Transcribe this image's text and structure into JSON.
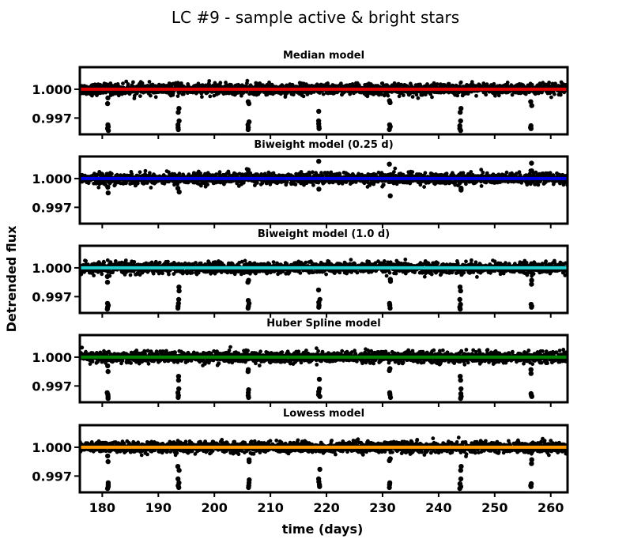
{
  "figure": {
    "title": "LC #9 - sample active & bright stars",
    "xlabel": "time (days)",
    "ylabel": "Detrended flux"
  },
  "chart_data": [
    {
      "type": "scatter",
      "title": "Median model",
      "model_color": "#e00000",
      "model_value": 1.0,
      "xlim": [
        176,
        263
      ],
      "ylim": [
        0.9953,
        1.0023
      ],
      "xticks": [
        180,
        190,
        200,
        210,
        220,
        230,
        240,
        250,
        260
      ],
      "yticks": [
        1.0,
        0.997
      ],
      "ytick_labels": [
        "1.000",
        "0.997"
      ],
      "xtick_labels_visible": false,
      "transit_times": [
        181.0,
        193.6,
        206.1,
        218.7,
        231.3,
        243.9,
        256.5
      ],
      "transit_dips": [
        {
          "t": 181.0,
          "flux": [
            0.9991,
            0.9985,
            0.9963,
            0.9961,
            0.9959,
            0.9957
          ]
        },
        {
          "t": 193.6,
          "flux": [
            0.998,
            0.9976,
            0.9967,
            0.9963,
            0.996,
            0.9958
          ]
        },
        {
          "t": 206.1,
          "flux": [
            0.9987,
            0.9985,
            0.9966,
            0.9963,
            0.996,
            0.9958
          ]
        },
        {
          "t": 218.7,
          "flux": [
            0.9977,
            0.9967,
            0.9964,
            0.9961,
            0.9959
          ]
        },
        {
          "t": 231.3,
          "flux": [
            0.9988,
            0.9986,
            0.9963,
            0.9961,
            0.9958
          ]
        },
        {
          "t": 243.9,
          "flux": [
            0.998,
            0.9976,
            0.9967,
            0.9962,
            0.9959,
            0.9957
          ]
        },
        {
          "t": 256.5,
          "flux": [
            0.9987,
            0.9983,
            0.9962,
            0.996,
            0.9959
          ]
        }
      ]
    },
    {
      "type": "scatter",
      "title": "Biweight model (0.25 d)",
      "model_color": "#0000e6",
      "model_value": 1.0,
      "xlim": [
        176,
        263
      ],
      "ylim": [
        0.9953,
        1.0023
      ],
      "xticks": [
        180,
        190,
        200,
        210,
        220,
        230,
        240,
        250,
        260
      ],
      "yticks": [
        1.0,
        0.997
      ],
      "ytick_labels": [
        "1.000",
        "0.997"
      ],
      "xtick_labels_visible": false,
      "transit_times": [
        181.0,
        193.6,
        206.1,
        218.7,
        231.3,
        243.9,
        256.5
      ],
      "transit_dips": [
        {
          "t": 181.0,
          "flux": [
            0.9991,
            0.9985
          ]
        },
        {
          "t": 193.6,
          "flux": [
            0.999,
            0.9986
          ]
        },
        {
          "t": 206.1,
          "flux": [
            1.0009,
            1.0006
          ]
        },
        {
          "t": 218.7,
          "flux": [
            1.0018,
            0.9989
          ]
        },
        {
          "t": 231.3,
          "flux": [
            1.0015,
            0.9982
          ]
        },
        {
          "t": 243.9,
          "flux": [
            0.999,
            0.9988
          ]
        },
        {
          "t": 256.5,
          "flux": [
            1.0016,
            1.0008
          ]
        }
      ]
    },
    {
      "type": "scatter",
      "title": "Biweight model (1.0 d)",
      "model_color": "#20d0d0",
      "model_value": 1.0,
      "xlim": [
        176,
        263
      ],
      "ylim": [
        0.9953,
        1.0023
      ],
      "xticks": [
        180,
        190,
        200,
        210,
        220,
        230,
        240,
        250,
        260
      ],
      "yticks": [
        1.0,
        0.997
      ],
      "ytick_labels": [
        "1.000",
        "0.997"
      ],
      "xtick_labels_visible": false,
      "transit_times": [
        181.0,
        193.6,
        206.1,
        218.7,
        231.3,
        243.9,
        256.5
      ],
      "transit_dips": [
        {
          "t": 181.0,
          "flux": [
            0.9991,
            0.9985,
            0.9963,
            0.9961,
            0.9959,
            0.9957
          ]
        },
        {
          "t": 193.6,
          "flux": [
            0.998,
            0.9976,
            0.9967,
            0.9963,
            0.996,
            0.9958
          ]
        },
        {
          "t": 206.1,
          "flux": [
            0.9987,
            0.9985,
            0.9966,
            0.9963,
            0.996,
            0.9958
          ]
        },
        {
          "t": 218.7,
          "flux": [
            0.9977,
            0.9967,
            0.9964,
            0.9961,
            0.9959
          ]
        },
        {
          "t": 231.3,
          "flux": [
            0.9988,
            0.9986,
            0.9963,
            0.9961,
            0.9958
          ]
        },
        {
          "t": 243.9,
          "flux": [
            0.998,
            0.9976,
            0.9967,
            0.9962,
            0.9959,
            0.9957
          ]
        },
        {
          "t": 256.5,
          "flux": [
            0.9987,
            0.9983,
            0.9962,
            0.996,
            0.9959
          ]
        }
      ]
    },
    {
      "type": "scatter",
      "title": "Huber Spline model",
      "model_color": "#008000",
      "model_value": 1.0,
      "xlim": [
        176,
        263
      ],
      "ylim": [
        0.9953,
        1.0023
      ],
      "xticks": [
        180,
        190,
        200,
        210,
        220,
        230,
        240,
        250,
        260
      ],
      "yticks": [
        1.0,
        0.997
      ],
      "ytick_labels": [
        "1.000",
        "0.997"
      ],
      "xtick_labels_visible": false,
      "transit_times": [
        181.0,
        193.6,
        206.1,
        218.7,
        231.3,
        243.9,
        256.5
      ],
      "transit_dips": [
        {
          "t": 181.0,
          "flux": [
            0.9991,
            0.9985,
            0.9963,
            0.9961,
            0.9959,
            0.9957
          ]
        },
        {
          "t": 193.6,
          "flux": [
            0.998,
            0.9976,
            0.9967,
            0.9963,
            0.996,
            0.9958
          ]
        },
        {
          "t": 206.1,
          "flux": [
            0.9987,
            0.9985,
            0.9966,
            0.9963,
            0.996,
            0.9958
          ]
        },
        {
          "t": 218.7,
          "flux": [
            0.9977,
            0.9967,
            0.9964,
            0.9961,
            0.9959
          ]
        },
        {
          "t": 231.3,
          "flux": [
            0.9988,
            0.9986,
            0.9963,
            0.9961,
            0.9958
          ]
        },
        {
          "t": 243.9,
          "flux": [
            0.998,
            0.9976,
            0.9967,
            0.9962,
            0.9959,
            0.9957
          ]
        },
        {
          "t": 256.5,
          "flux": [
            0.9987,
            0.9983,
            0.9962,
            0.996,
            0.9959
          ]
        }
      ]
    },
    {
      "type": "scatter",
      "title": "Lowess model",
      "model_color": "#ff9900",
      "model_value": 1.0,
      "xlim": [
        176,
        263
      ],
      "ylim": [
        0.9953,
        1.0023
      ],
      "xticks": [
        180,
        190,
        200,
        210,
        220,
        230,
        240,
        250,
        260
      ],
      "yticks": [
        1.0,
        0.997
      ],
      "ytick_labels": [
        "1.000",
        "0.997"
      ],
      "xtick_labels": [
        "180",
        "190",
        "200",
        "210",
        "220",
        "230",
        "240",
        "250",
        "260"
      ],
      "xtick_labels_visible": true,
      "transit_times": [
        181.0,
        193.6,
        206.1,
        218.7,
        231.3,
        243.9,
        256.5
      ],
      "transit_dips": [
        {
          "t": 181.0,
          "flux": [
            0.9991,
            0.9985,
            0.9963,
            0.9961,
            0.9959,
            0.9957
          ]
        },
        {
          "t": 193.6,
          "flux": [
            0.998,
            0.9976,
            0.9967,
            0.9963,
            0.996,
            0.9958
          ]
        },
        {
          "t": 206.1,
          "flux": [
            0.9987,
            0.9985,
            0.9966,
            0.9963,
            0.996,
            0.9958
          ]
        },
        {
          "t": 218.7,
          "flux": [
            0.9977,
            0.9967,
            0.9964,
            0.9961,
            0.9959
          ]
        },
        {
          "t": 231.3,
          "flux": [
            0.9988,
            0.9986,
            0.9963,
            0.9961,
            0.9958
          ]
        },
        {
          "t": 243.9,
          "flux": [
            0.998,
            0.9976,
            0.9967,
            0.9962,
            0.9959,
            0.9957
          ]
        },
        {
          "t": 256.5,
          "flux": [
            0.9987,
            0.9983,
            0.9962,
            0.996,
            0.9959
          ]
        }
      ]
    }
  ],
  "noise": {
    "baseline_flux": 1.0,
    "scatter": 0.00028,
    "points_per_day": 24
  }
}
